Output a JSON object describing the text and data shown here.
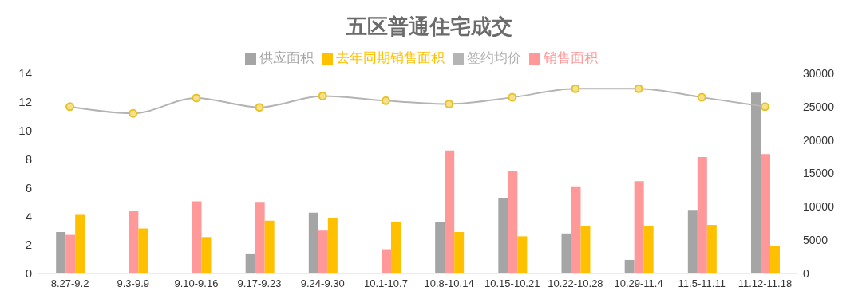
{
  "chart_data": {
    "type": "bar",
    "title": "五区普通住宅成交",
    "categories": [
      "8.27-9.2",
      "9.3-9.9",
      "9.10-9.16",
      "9.17-9.23",
      "9.24-9.30",
      "10.1-10.7",
      "10.8-10.14",
      "10.15-10.21",
      "10.22-10.28",
      "10.29-11.4",
      "11.5-11.11",
      "11.12-11.18"
    ],
    "series": [
      {
        "name": "供应面积",
        "color": "#a5a5a5",
        "values": [
          2.9,
          0,
          0,
          1.4,
          4.25,
          0,
          3.6,
          5.3,
          2.8,
          0.95,
          4.45,
          12.65
        ]
      },
      {
        "name": "销售面积",
        "color": "#ff9999",
        "values": [
          2.7,
          4.4,
          5.05,
          5.0,
          3.0,
          1.7,
          8.6,
          7.2,
          6.1,
          6.45,
          8.15,
          8.35
        ]
      },
      {
        "name": "去年同期销售面积",
        "color": "#ffc000",
        "values": [
          4.1,
          3.15,
          2.55,
          3.7,
          3.9,
          3.6,
          2.9,
          2.6,
          3.3,
          3.3,
          3.4,
          1.9
        ]
      },
      {
        "name": "签约均价",
        "type": "line",
        "axis": "y2",
        "color": "#b4b4b4",
        "marker": "circle",
        "values": [
          25000,
          24000,
          26300,
          24900,
          26600,
          25900,
          25400,
          26400,
          27700,
          27700,
          26400,
          25000
        ]
      }
    ],
    "ylim": [
      0,
      14
    ],
    "yticks": [
      0,
      2,
      4,
      6,
      8,
      10,
      12,
      14
    ],
    "y2lim": [
      0,
      30000
    ],
    "y2ticks": [
      0,
      5000,
      10000,
      15000,
      20000,
      25000,
      30000
    ],
    "grid": false,
    "legend": "top"
  }
}
